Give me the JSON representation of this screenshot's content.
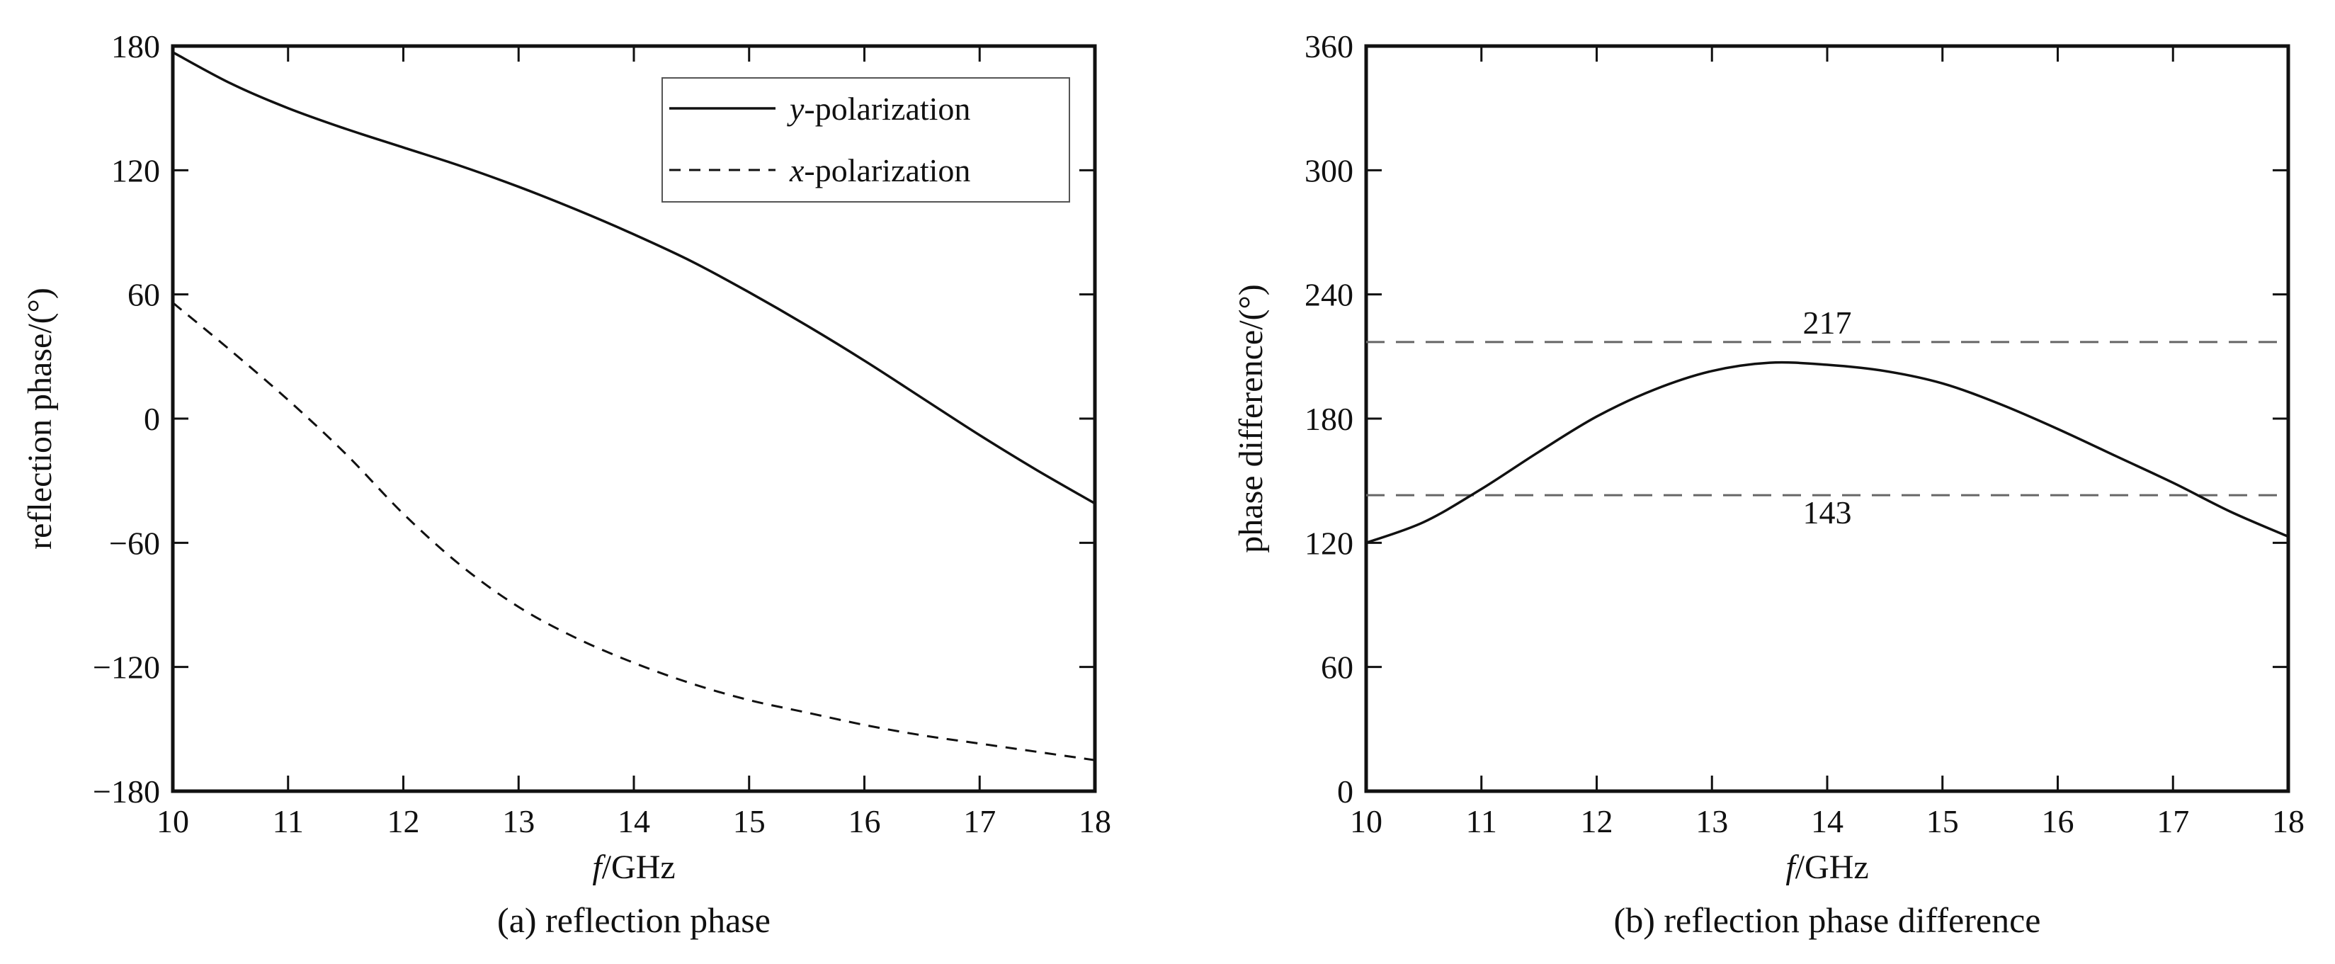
{
  "chart_data": [
    {
      "type": "line",
      "panel": "(a)",
      "caption": "(a) reflection phase",
      "xlabel_italic": "f",
      "xlabel_rest": "/GHz",
      "ylabel": "reflection phase/(°)",
      "xlim": [
        10,
        18
      ],
      "ylim": [
        -180,
        180
      ],
      "xticks": [
        10,
        11,
        12,
        13,
        14,
        15,
        16,
        17,
        18
      ],
      "yticks": [
        -180,
        -120,
        -60,
        0,
        60,
        120,
        180
      ],
      "ytick_labels": [
        "−180",
        "−120",
        "−60",
        "0",
        "60",
        "120",
        "180"
      ],
      "legend_position": "top-right",
      "x": [
        10,
        10.5,
        11,
        11.5,
        12,
        12.5,
        13,
        13.5,
        14,
        14.5,
        15,
        15.5,
        16,
        16.5,
        17,
        17.5,
        18
      ],
      "series": [
        {
          "name_italic": "y",
          "name_rest": "-polarization",
          "style": "solid",
          "values": [
            177,
            162,
            150,
            140,
            131,
            122,
            112,
            101,
            89,
            76,
            61,
            45,
            28,
            10,
            -8,
            -25,
            -41
          ]
        },
        {
          "name_italic": "x",
          "name_rest": "-polarization",
          "style": "dashed",
          "values": [
            56,
            33,
            9,
            -17,
            -46,
            -71,
            -91,
            -106,
            -118,
            -128,
            -136,
            -142,
            -148,
            -153,
            -157,
            -161,
            -165
          ]
        }
      ]
    },
    {
      "type": "line",
      "panel": "(b)",
      "caption": "(b) reflection phase difference",
      "xlabel_italic": "f",
      "xlabel_rest": "/GHz",
      "ylabel": "phase difference/(°)",
      "xlim": [
        10,
        18
      ],
      "ylim": [
        0,
        360
      ],
      "xticks": [
        10,
        11,
        12,
        13,
        14,
        15,
        16,
        17,
        18
      ],
      "yticks": [
        0,
        60,
        120,
        180,
        240,
        300,
        360
      ],
      "ytick_labels": [
        "0",
        "60",
        "120",
        "180",
        "240",
        "300",
        "360"
      ],
      "reference_lines": [
        {
          "value": 217,
          "label": "217"
        },
        {
          "value": 143,
          "label": "143"
        }
      ],
      "x": [
        10,
        10.5,
        11,
        11.5,
        12,
        12.5,
        13,
        13.5,
        14,
        14.5,
        15,
        15.5,
        16,
        16.5,
        17,
        17.5,
        18
      ],
      "series": [
        {
          "style": "solid",
          "values": [
            120,
            130,
            146,
            164,
            181,
            194,
            203,
            207,
            206,
            203,
            197,
            187,
            175,
            162,
            149,
            135,
            123
          ]
        }
      ]
    }
  ]
}
